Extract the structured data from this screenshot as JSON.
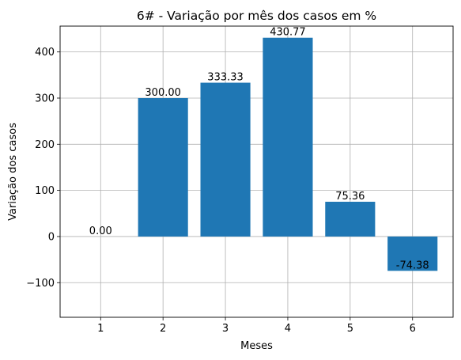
{
  "chart_data": {
    "type": "bar",
    "title": "6# - Variação por mês dos casos em %",
    "xlabel": "Meses",
    "ylabel": "Variação dos casos",
    "categories": [
      "1",
      "2",
      "3",
      "4",
      "5",
      "6"
    ],
    "values": [
      0.0,
      300.0,
      333.33,
      430.77,
      75.36,
      -74.38
    ],
    "value_labels": [
      "0.00",
      "300.00",
      "333.33",
      "430.77",
      "75.36",
      "-74.38"
    ],
    "xlim": [
      0.35,
      6.65
    ],
    "ylim": [
      -175,
      456
    ],
    "yticks": [
      -100,
      0,
      100,
      200,
      300,
      400
    ],
    "ytick_labels": [
      "−100",
      "0",
      "100",
      "200",
      "300",
      "400"
    ],
    "grid": true,
    "bar_color": "#1f77b4"
  }
}
